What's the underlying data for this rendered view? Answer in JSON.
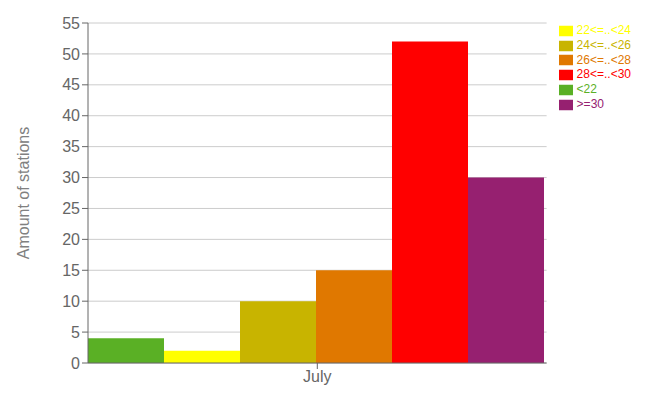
{
  "chart_data": {
    "type": "bar",
    "categories": [
      "July"
    ],
    "series": [
      {
        "name": "<22",
        "color": "#5ab025",
        "values": [
          4
        ]
      },
      {
        "name": "22<=..<24",
        "color": "#ffff00",
        "values": [
          2
        ]
      },
      {
        "name": "24<=..<26",
        "color": "#c8b400",
        "values": [
          10
        ]
      },
      {
        "name": "26<=..<28",
        "color": "#e07800",
        "values": [
          15
        ]
      },
      {
        "name": "28<=..<30",
        "color": "#ff0000",
        "values": [
          52
        ]
      },
      {
        "name": ">=30",
        "color": "#962070",
        "values": [
          30
        ]
      }
    ],
    "ylabel": "Amount of stations",
    "ylim": [
      0,
      55
    ],
    "yticks": [
      0,
      5,
      10,
      15,
      20,
      25,
      30,
      35,
      40,
      45,
      50,
      55
    ],
    "grid": true,
    "legend": "upper right"
  }
}
